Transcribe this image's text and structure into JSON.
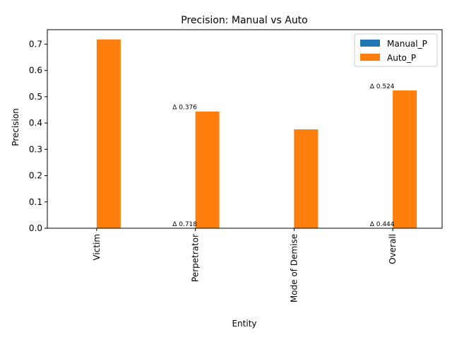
{
  "chart_data": {
    "type": "bar",
    "title": "Precision: Manual vs Auto",
    "xlabel": "Entity",
    "ylabel": "Precision",
    "categories": [
      "Victim",
      "Perpetrator",
      "Mode of Demise",
      "Overall"
    ],
    "series": [
      {
        "name": "Manual_P",
        "color": "#1f77b4",
        "values": [
          0,
          0,
          0,
          0
        ]
      },
      {
        "name": "Auto_P",
        "color": "#ff7f0e",
        "values": [
          0.718,
          0.444,
          0.376,
          0.524
        ]
      }
    ],
    "ylim": [
      0,
      0.755
    ],
    "yticks": [
      0.0,
      0.1,
      0.2,
      0.3,
      0.4,
      0.5,
      0.6,
      0.7
    ],
    "ytick_labels": [
      "0.0",
      "0.1",
      "0.2",
      "0.3",
      "0.4",
      "0.5",
      "0.6",
      "0.7"
    ],
    "annotations": [
      {
        "text": "Δ 0.718",
        "category_index": 1,
        "y": 0.0
      },
      {
        "text": "Δ 0.376",
        "category_index": 1,
        "y": 0.444
      },
      {
        "text": "Δ 0.444",
        "category_index": 3,
        "y": 0.0
      },
      {
        "text": "Δ 0.524",
        "category_index": 3,
        "y": 0.524
      }
    ],
    "legend": {
      "position": "top-right",
      "entries": [
        "Manual_P",
        "Auto_P"
      ]
    },
    "grid": false
  }
}
